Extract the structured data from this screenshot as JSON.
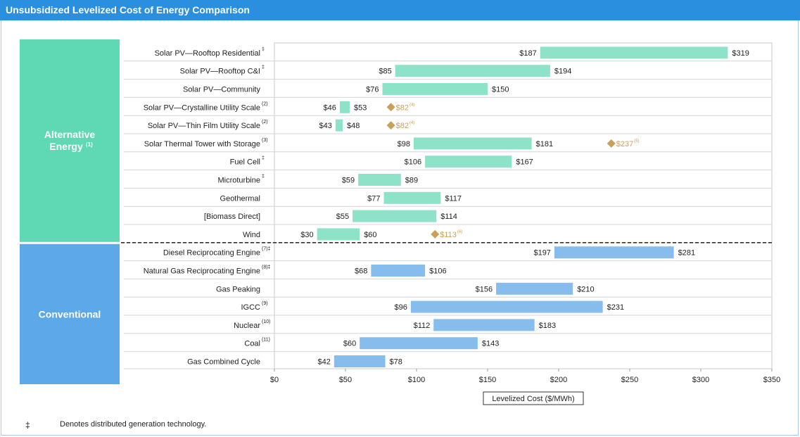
{
  "title": "Unsubsidized Levelized Cost of Energy Comparison",
  "footnote": {
    "symbol": "‡",
    "text": "Denotes distributed generation technology."
  },
  "colors": {
    "alternative": "#8de2c8",
    "conventional": "#86bdec",
    "alt_group_bg": "#5fd8b4",
    "conv_group_bg": "#5ca8e8",
    "diamond": "#c9a05a",
    "header": "#2b8fe0"
  },
  "chart_data": {
    "type": "bar",
    "orientation": "horizontal-range",
    "xlabel": "Levelized Cost ($/MWh)",
    "xlim": [
      0,
      350
    ],
    "xticks": [
      0,
      50,
      100,
      150,
      200,
      250,
      300,
      350
    ],
    "xtick_labels": [
      "$0",
      "$50",
      "$100",
      "$150",
      "$200",
      "$250",
      "$300",
      "$350"
    ],
    "groups": [
      {
        "name": "Alternative",
        "name2": "Energy",
        "sup": "(1)",
        "rows": [
          0,
          10
        ]
      },
      {
        "name": "Conventional",
        "name2": "",
        "sup": "",
        "rows": [
          11,
          17
        ]
      }
    ],
    "rows": [
      {
        "label": "Solar PV—Rooftop Residential",
        "sup": "‡",
        "low": 187,
        "high": 319,
        "low_label": "$187",
        "high_label": "$319",
        "group": "alt"
      },
      {
        "label": "Solar PV—Rooftop C&I",
        "sup": "‡",
        "low": 85,
        "high": 194,
        "low_label": "$85",
        "high_label": "$194",
        "group": "alt"
      },
      {
        "label": "Solar PV—Community",
        "sup": "",
        "low": 76,
        "high": 150,
        "low_label": "$76",
        "high_label": "$150",
        "group": "alt"
      },
      {
        "label": "Solar PV—Crystalline Utility Scale",
        "sup": "(2)",
        "low": 46,
        "high": 53,
        "low_label": "$46",
        "high_label": "$53",
        "group": "alt",
        "marker": {
          "value": 82,
          "label": "$82",
          "sup": "(4)"
        }
      },
      {
        "label": "Solar PV—Thin Film Utility Scale",
        "sup": "(2)",
        "low": 43,
        "high": 48,
        "low_label": "$43",
        "high_label": "$48",
        "group": "alt",
        "marker": {
          "value": 82,
          "label": "$82",
          "sup": "(4)"
        }
      },
      {
        "label": "Solar Thermal Tower with Storage",
        "sup": "(3)",
        "low": 98,
        "high": 181,
        "low_label": "$98",
        "high_label": "$181",
        "group": "alt",
        "marker": {
          "value": 237,
          "label": "$237",
          "sup": "(5)"
        }
      },
      {
        "label": "Fuel Cell",
        "sup": "‡",
        "low": 106,
        "high": 167,
        "low_label": "$106",
        "high_label": "$167",
        "group": "alt"
      },
      {
        "label": "Microturbine",
        "sup": "‡",
        "low": 59,
        "high": 89,
        "low_label": "$59",
        "high_label": "$89",
        "group": "alt"
      },
      {
        "label": "Geothermal",
        "sup": "",
        "low": 77,
        "high": 117,
        "low_label": "$77",
        "high_label": "$117",
        "group": "alt"
      },
      {
        "label": "[Biomass Direct]",
        "sup": "",
        "low": 55,
        "high": 114,
        "low_label": "$55",
        "high_label": "$114",
        "group": "alt"
      },
      {
        "label": "Wind",
        "sup": "",
        "low": 30,
        "high": 60,
        "low_label": "$30",
        "high_label": "$60",
        "group": "alt",
        "marker": {
          "value": 113,
          "label": "$113",
          "sup": "(6)"
        }
      },
      {
        "label": "Diesel Reciprocating Engine",
        "sup": "(7)‡",
        "low": 197,
        "high": 281,
        "low_label": "$197",
        "high_label": "$281",
        "group": "conv"
      },
      {
        "label": "Natural Gas Reciprocating Engine",
        "sup": "(8)‡",
        "low": 68,
        "high": 106,
        "low_label": "$68",
        "high_label": "$106",
        "group": "conv"
      },
      {
        "label": "Gas Peaking",
        "sup": "",
        "low": 156,
        "high": 210,
        "low_label": "$156",
        "high_label": "$210",
        "group": "conv"
      },
      {
        "label": "IGCC",
        "sup": "(9)",
        "low": 96,
        "high": 231,
        "low_label": "$96",
        "high_label": "$231",
        "group": "conv"
      },
      {
        "label": "Nuclear",
        "sup": "(10)",
        "low": 112,
        "high": 183,
        "low_label": "$112",
        "high_label": "$183",
        "group": "conv"
      },
      {
        "label": "Coal",
        "sup": "(11)",
        "low": 60,
        "high": 143,
        "low_label": "$60",
        "high_label": "$143",
        "group": "conv"
      },
      {
        "label": "Gas Combined Cycle",
        "sup": "",
        "low": 42,
        "high": 78,
        "low_label": "$42",
        "high_label": "$78",
        "group": "conv"
      }
    ]
  }
}
